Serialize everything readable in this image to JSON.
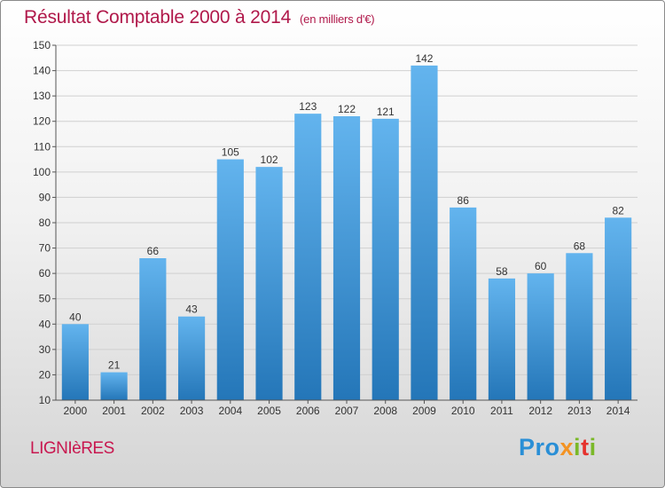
{
  "title": "Résultat Comptable 2000 à 2014",
  "subtitle": "(en milliers d'€)",
  "town": "LIGNIèRES",
  "logo": {
    "p1": "Pro",
    "p2": "x",
    "p3": "i",
    "p4": "t",
    "p5": "i"
  },
  "colors": {
    "bar_light": "#63b4ee",
    "bar_dark": "#2476b8",
    "title": "#b0184a"
  },
  "chart_data": {
    "type": "bar",
    "title": "Résultat Comptable 2000 à 2014",
    "xlabel": "",
    "ylabel": "(en milliers d'€)",
    "categories": [
      "2000",
      "2001",
      "2002",
      "2003",
      "2004",
      "2005",
      "2006",
      "2007",
      "2008",
      "2009",
      "2010",
      "2011",
      "2012",
      "2013",
      "2014"
    ],
    "values": [
      40,
      21,
      66,
      43,
      105,
      102,
      123,
      122,
      121,
      142,
      86,
      58,
      60,
      68,
      82
    ],
    "ylim": [
      10,
      150
    ],
    "yticks": [
      10,
      20,
      30,
      40,
      50,
      60,
      70,
      80,
      90,
      100,
      110,
      120,
      130,
      140,
      150
    ],
    "grid": true,
    "legend": "none"
  }
}
